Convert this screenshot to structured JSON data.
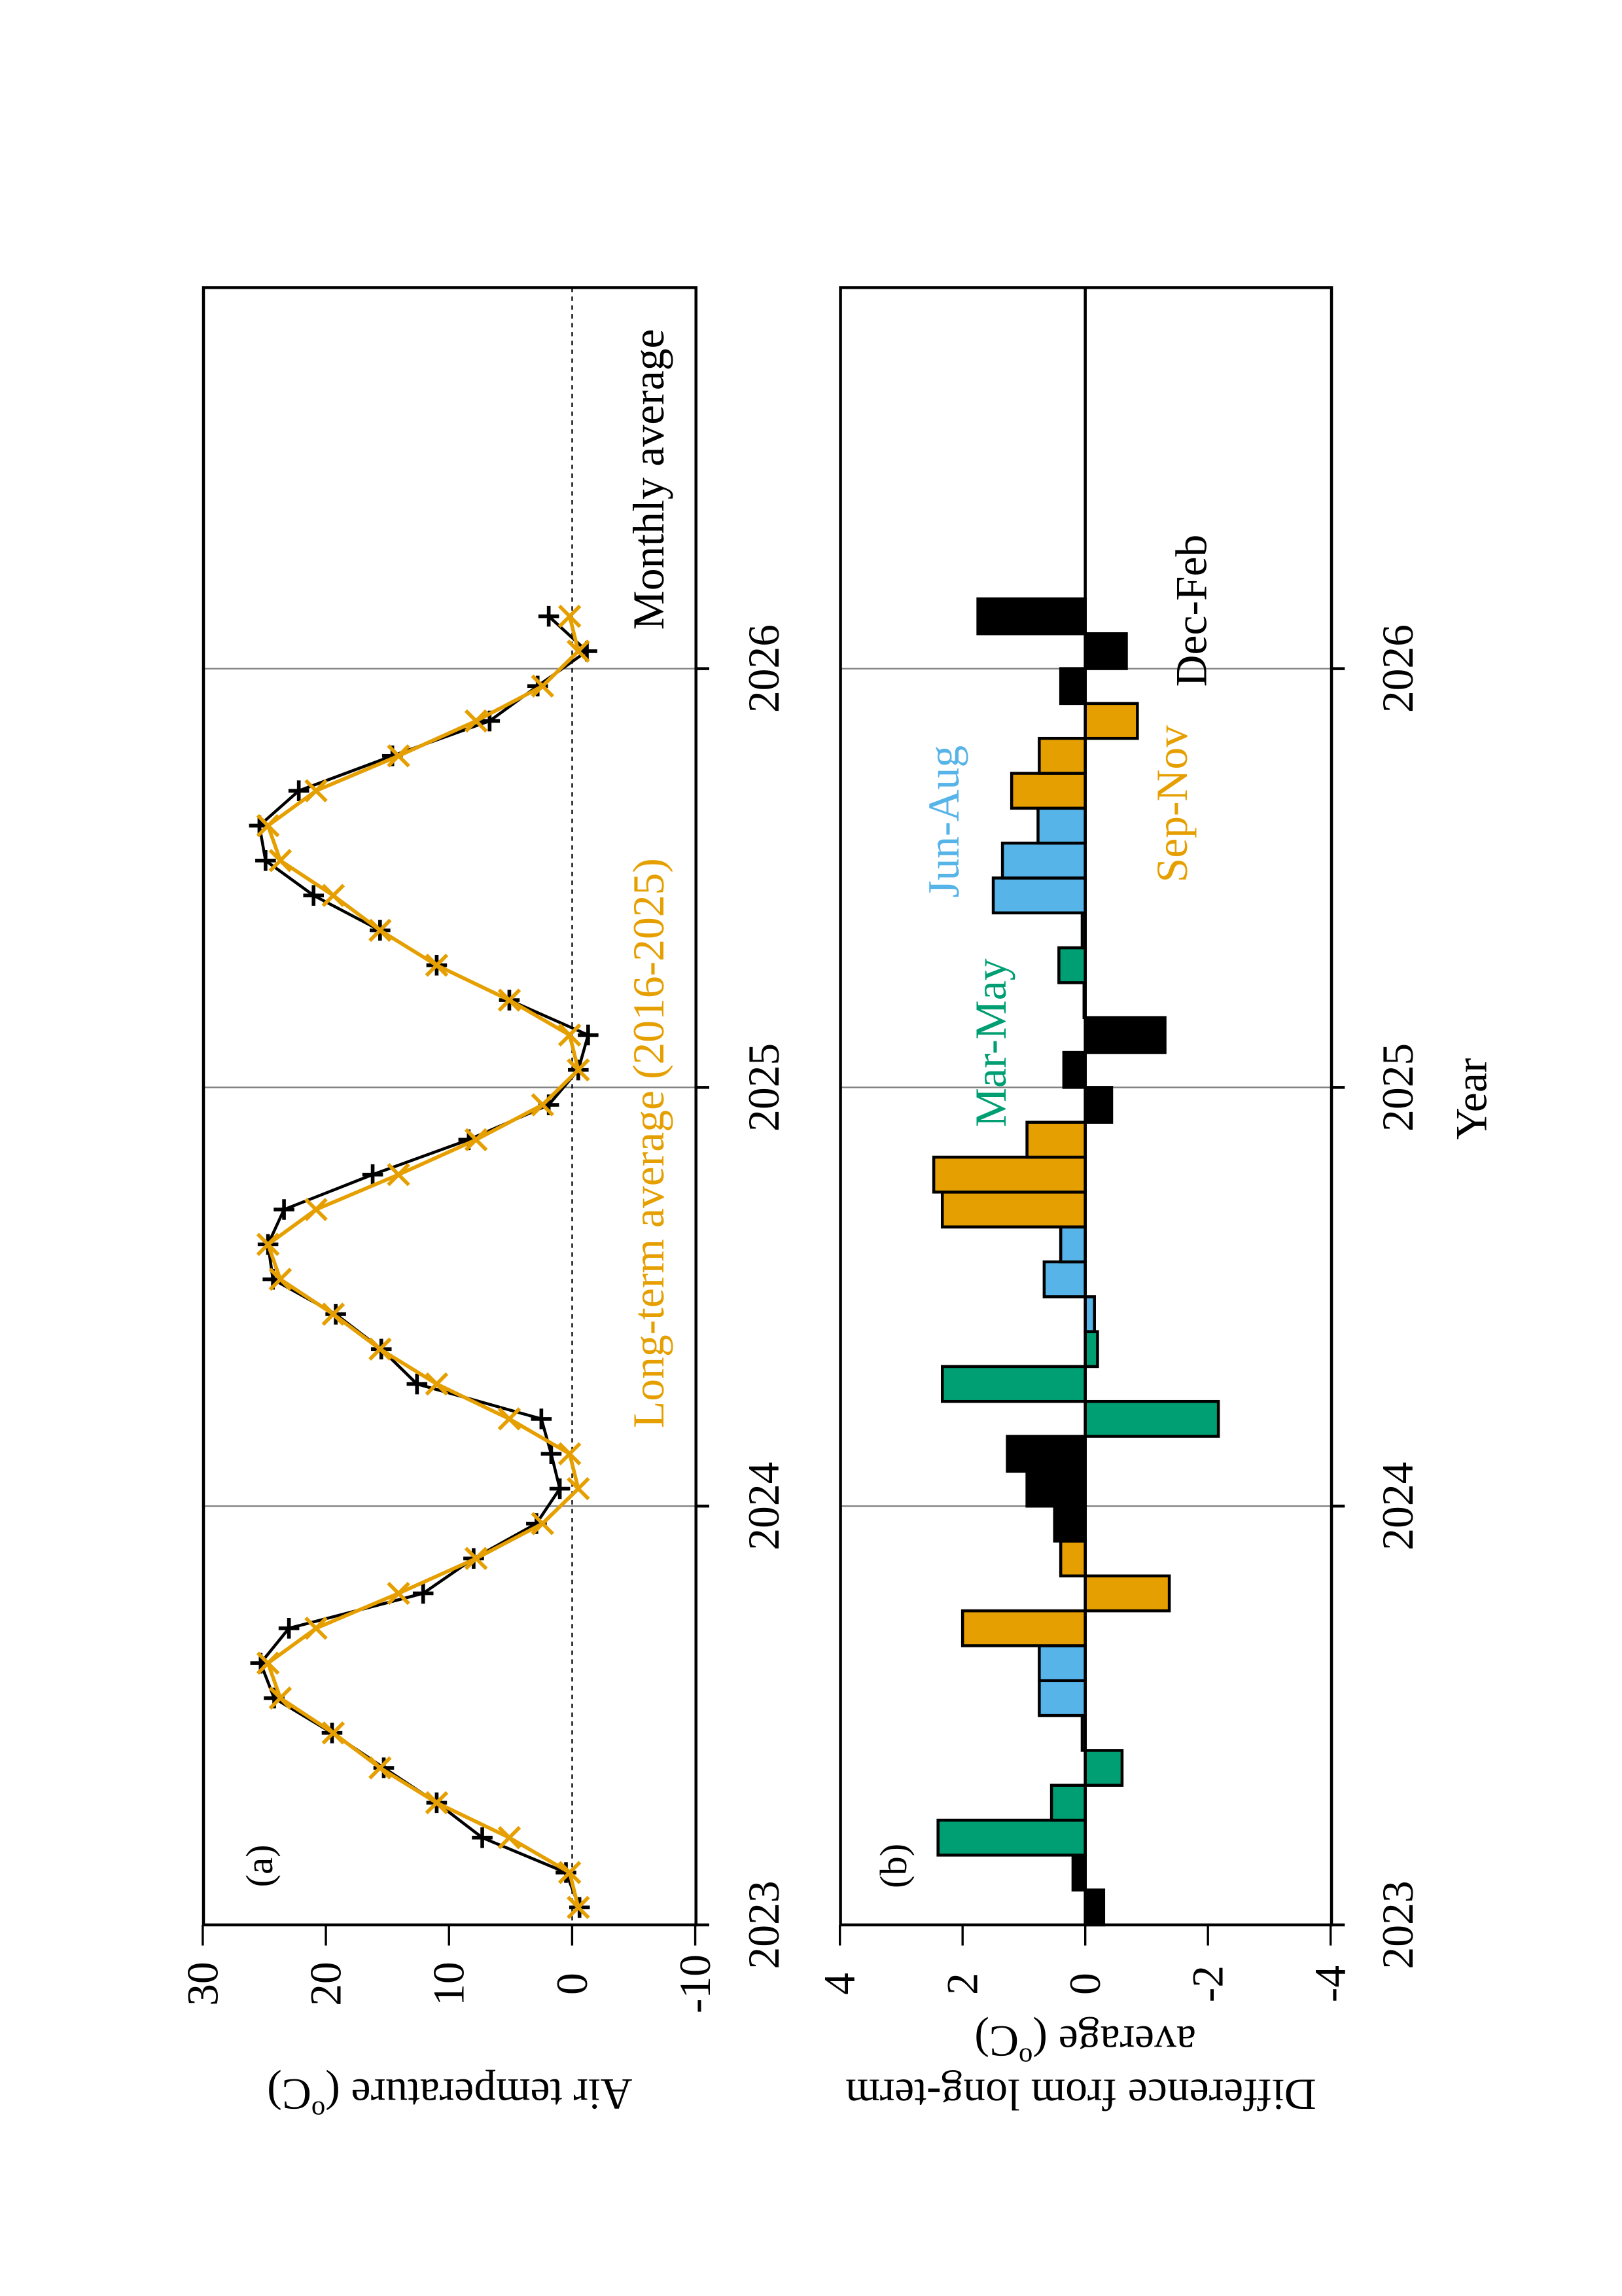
{
  "colors": {
    "monthly": "#000000",
    "long_term": "#E69F00",
    "dec_feb": "#000000",
    "mar_may": "#009E73",
    "jun_aug": "#56B4E9",
    "sep_nov": "#E69F00",
    "grid": "#808080"
  },
  "chart_data": [
    {
      "type": "line",
      "panel_label": "(a)",
      "xlabel": "Year",
      "ylabel_parts": [
        "Air temperature (",
        "o",
        "C)"
      ],
      "x_ticks": [
        "2023",
        "2024",
        "2025",
        "2026"
      ],
      "y_ticks": [
        "30",
        "20",
        "10",
        "0",
        "-10"
      ],
      "y_tick_values": [
        30,
        20,
        10,
        0,
        -10
      ],
      "ylim": [
        -10,
        30
      ],
      "start_month": "2023-01",
      "reference_line": 0,
      "series": [
        {
          "name": "Monthly average",
          "marker": "plus",
          "values": [
            -0.6,
            0.5,
            7.3,
            11.0,
            15.3,
            19.5,
            24.2,
            25.3,
            23.0,
            12.1,
            8.0,
            2.9,
            1.0,
            1.7,
            2.5,
            12.6,
            15.5,
            19.2,
            24.3,
            24.7,
            23.4,
            16.2,
            8.4,
            1.9,
            -0.5,
            -1.3,
            5.1,
            11.0,
            15.6,
            21.0,
            24.9,
            25.4,
            22.2,
            14.6,
            6.7,
            2.8,
            -1.2,
            1.9
          ]
        },
        {
          "name": "Long-term average (2016-2025)",
          "marker": "cross",
          "values": [
            -0.5,
            0.2,
            5.1,
            11.0,
            15.6,
            19.4,
            23.7,
            24.7,
            20.8,
            14.1,
            7.8,
            2.4,
            -0.5,
            0.2,
            5.1,
            11.0,
            15.6,
            19.4,
            23.7,
            24.7,
            20.8,
            14.1,
            7.8,
            2.4,
            -0.5,
            0.2,
            5.1,
            11.0,
            15.6,
            19.4,
            23.7,
            24.7,
            20.8,
            14.1,
            7.8,
            2.4,
            -0.5,
            0.2
          ]
        }
      ]
    },
    {
      "type": "bar",
      "panel_label": "(b)",
      "xlabel": "Year",
      "ylabel_line1": "Difference from long-term",
      "ylabel_parts": [
        "average (",
        "o",
        "C)"
      ],
      "x_ticks": [
        "2023",
        "2024",
        "2025",
        "2026"
      ],
      "y_ticks": [
        "4",
        "2",
        "0",
        "-2",
        "-4"
      ],
      "y_tick_values": [
        4,
        2,
        0,
        -2,
        -4
      ],
      "ylim": [
        -4,
        4
      ],
      "start_month": "2023-01",
      "season_legend": [
        "Mar-May",
        "Jun-Aug",
        "Sep-Nov",
        "Dec-Feb"
      ],
      "values": [
        -0.3,
        0.2,
        2.4,
        0.55,
        -0.6,
        0.05,
        0.75,
        0.75,
        2.0,
        -1.37,
        0.4,
        0.5,
        0.95,
        1.27,
        -2.17,
        2.33,
        -0.2,
        -0.15,
        0.67,
        0.4,
        2.33,
        2.47,
        0.95,
        -0.43,
        0.35,
        -1.3,
        0.02,
        0.43,
        0.05,
        1.5,
        1.35,
        0.77,
        1.2,
        0.75,
        -0.85,
        0.4,
        -0.67,
        1.75
      ]
    }
  ]
}
